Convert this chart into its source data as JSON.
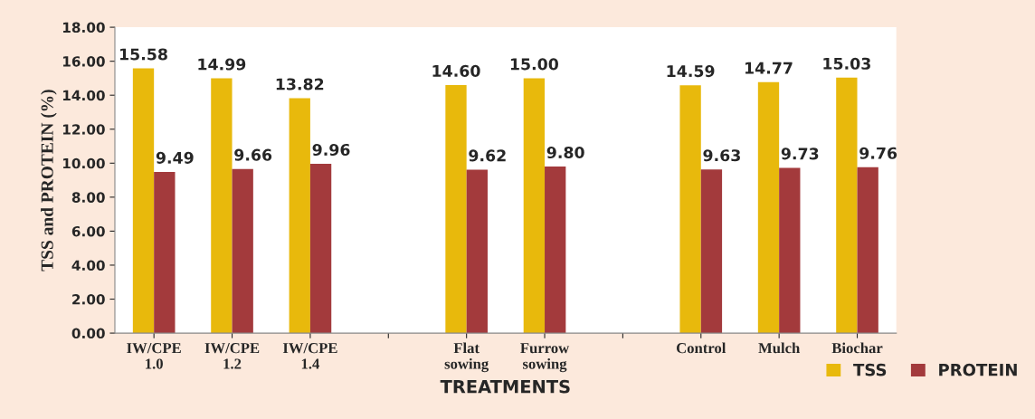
{
  "chart_data": {
    "type": "bar",
    "xlabel": "TREATMENTS",
    "ylabel": "TSS and PROTEIN (%)",
    "categories": [
      "IW/CPE\n1.0",
      "IW/CPE\n1.2",
      "IW/CPE\n1.4",
      null,
      "Flat\nsowing",
      "Furrow\nsowing",
      null,
      "Control",
      "Mulch",
      "Biochar"
    ],
    "series": [
      {
        "name": "TSS",
        "color": "#e8b90c",
        "values": [
          15.58,
          14.99,
          13.82,
          null,
          14.6,
          15.0,
          null,
          14.59,
          14.77,
          15.03
        ],
        "value_labels": [
          "15.58",
          "14.99",
          "13.82",
          null,
          "14.60",
          "15.00",
          null,
          "14.59",
          "14.77",
          "15.03"
        ]
      },
      {
        "name": "PROTEIN",
        "color": "#a33a3c",
        "values": [
          9.49,
          9.66,
          9.96,
          null,
          9.62,
          9.8,
          null,
          9.63,
          9.73,
          9.76
        ],
        "value_labels": [
          "9.49",
          "9.66",
          "9.96",
          null,
          "9.62",
          "9.80",
          null,
          "9.63",
          "9.73",
          "9.76"
        ]
      }
    ],
    "ylim": [
      0,
      18
    ],
    "yticks": [
      {
        "value": 0,
        "label": "0.00"
      },
      {
        "value": 2,
        "label": "2.00"
      },
      {
        "value": 4,
        "label": "4.00"
      },
      {
        "value": 6,
        "label": "6.00"
      },
      {
        "value": 8,
        "label": "8.00"
      },
      {
        "value": 10,
        "label": "10.00"
      },
      {
        "value": 12,
        "label": "12.00"
      },
      {
        "value": 14,
        "label": "14.00"
      },
      {
        "value": 16,
        "label": "16.00"
      },
      {
        "value": 18,
        "label": "18.00"
      }
    ],
    "grid": false,
    "legend": "bottom right"
  }
}
